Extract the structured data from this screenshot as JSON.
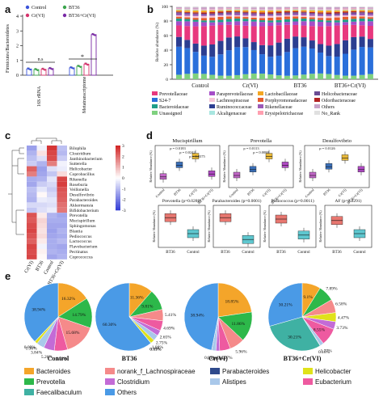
{
  "panel_letters": [
    "a",
    "b",
    "c",
    "d",
    "e"
  ],
  "panel_a": {
    "ylabel": "Firmicutes/Bacteroidetes",
    "yticks": [
      "0",
      "1",
      "2",
      "3",
      "4"
    ],
    "legend": [
      {
        "label": "Control",
        "color": "#3b54d9"
      },
      {
        "label": "BT36",
        "color": "#3aa44c"
      },
      {
        "label": "Cr(VI)",
        "color": "#d6336c"
      },
      {
        "label": "BT36+Cr(VI)",
        "color": "#7a2aa6"
      }
    ],
    "groups": [
      "16S rRNA",
      "Metatranscriptome"
    ],
    "ns_label": "n.s",
    "star_label": "*"
  },
  "panel_b": {
    "ylabel": "Relative abundance (%)",
    "yticks": [
      "0",
      "20",
      "40",
      "60",
      "80",
      "100"
    ],
    "groups": [
      "Control",
      "Cr(VI)",
      "BT36",
      "BT36+Cr(VI)"
    ],
    "legend": [
      {
        "label": "Prevotellaceae",
        "color": "#e8387e"
      },
      {
        "label": "Paraprevotellaceae",
        "color": "#a64dc8"
      },
      {
        "label": "Lactobacillaceae",
        "color": "#f4a623"
      },
      {
        "label": "Helicobacteraceae",
        "color": "#6a4c93"
      },
      {
        "label": "S24-7",
        "color": "#2a6fdb"
      },
      {
        "label": "Lachnospiraceae",
        "color": "#f6c6d8"
      },
      {
        "label": "Porphyromonadaceae",
        "color": "#e65c2e"
      },
      {
        "label": "Odoribacteraceae",
        "color": "#b22222"
      },
      {
        "label": "Bacteroidaceae",
        "color": "#1f9e89"
      },
      {
        "label": "Ruminococcaceae",
        "color": "#2c3e91"
      },
      {
        "label": "Rikenellaceae",
        "color": "#9b59b6"
      },
      {
        "label": "Others",
        "color": "#c8a2c8"
      },
      {
        "label": "Unassigned",
        "color": "#7fd17f"
      },
      {
        "label": "Alcaligenaceae",
        "color": "#a8e6e0"
      },
      {
        "label": "Erysipelotrichaceae",
        "color": "#ff9fb0"
      },
      {
        "label": "No_Rank",
        "color": "#e0e0e0"
      }
    ]
  },
  "panel_c": {
    "columns": [
      "Cr(VI)",
      "BT36",
      "Control",
      "BT36+Cr(VI)"
    ],
    "rows": [
      "Bilophila",
      "Clostridium",
      "Janthinobacterium",
      "Sutterella",
      "Helicobacter",
      "Coprobacillus",
      "Rikenella",
      "Roseburia",
      "Veillonella",
      "Desulfovibrio",
      "Parabacteroides",
      "Akkermansia",
      "Bifidobacterium",
      "Prevotella",
      "Mucispirillum",
      "Sphingomonas",
      "Blautia",
      "Pediococcus",
      "Lactococcus",
      "Flavobacterium",
      "Pectinatus",
      "Coprococcus"
    ],
    "scale_ticks": [
      "3",
      "2",
      "1",
      "0",
      "-1",
      "-2",
      "-3"
    ]
  },
  "panel_d": {
    "top_titles": [
      "Mucispirillum",
      "Prevotella",
      "Desulfovibrio"
    ],
    "top_pvals": [
      [
        "p = 0.0183",
        "p = 0.0242",
        "p = 0.0375"
      ],
      [
        "p = 0.0113",
        "p = 0.0088"
      ],
      [
        "p = 0.0126"
      ]
    ],
    "top_groups": [
      "Control",
      "BT36",
      "Cr(VI)",
      "BT36+Cr(VI)"
    ],
    "bottom_titles": [
      "Prevotella (p=0.0288)",
      "Parabacteroides (p=0.0001)",
      "Pediococcus (p=0.0011)",
      "AF (p=0.0291)"
    ],
    "bottom_groups": [
      "BT36",
      "Control"
    ],
    "ylabel": "Relative Abundance (%)"
  },
  "panel_e": {
    "pies": [
      {
        "label": "Control",
        "slices": [
          {
            "name": "Bacteroides",
            "value": 16.32,
            "text": "16.32%"
          },
          {
            "name": "Prevotella",
            "value": 14.79,
            "text": "14.79%"
          },
          {
            "name": "norank_f_Lachnospiraceae",
            "value": 15.68,
            "text": "15.68%"
          },
          {
            "name": "Eubacterium",
            "value": 6.52,
            "text": "6.52%"
          },
          {
            "name": "Clostridium",
            "value": 5.26,
            "text": "5.26%"
          },
          {
            "name": "Alistipes",
            "value": 3.84,
            "text": "3.84%"
          },
          {
            "name": "Helicobacter",
            "value": 1.36,
            "text": "1.36%"
          },
          {
            "name": "Parabacteroides",
            "value": 0.09,
            "text": "0.09%"
          },
          {
            "name": "Faecalibaculum",
            "value": 0.0,
            "text": ""
          },
          {
            "name": "Others",
            "value": 38.94,
            "text": "38.94%"
          }
        ]
      },
      {
        "label": "BT36",
        "slices": [
          {
            "name": "Bacteroides",
            "value": 11.36,
            "text": "11.36%"
          },
          {
            "name": "Prevotella",
            "value": 9.81,
            "text": "9.81%"
          },
          {
            "name": "norank_f_Lachnospiraceae",
            "value": 5.41,
            "text": "5.41%"
          },
          {
            "name": "Eubacterium",
            "value": 4.69,
            "text": "4.69%"
          },
          {
            "name": "Clostridium",
            "value": 2.65,
            "text": "2.65%"
          },
          {
            "name": "Alistipes",
            "value": 2.75,
            "text": "2.75%"
          },
          {
            "name": "Helicobacter",
            "value": 1.88,
            "text": "1.88%"
          },
          {
            "name": "Parabacteroides",
            "value": 0.09,
            "text": "0.09%"
          },
          {
            "name": "Faecalibaculum",
            "value": 0.01,
            "text": "0.01%"
          },
          {
            "name": "Others",
            "value": 60.3,
            "text": "60.30%"
          }
        ]
      },
      {
        "label": "Cr(VI)",
        "slices": [
          {
            "name": "Bacteroides",
            "value": 18.85,
            "text": "18.85%"
          },
          {
            "name": "Prevotella",
            "value": 11.86,
            "text": "11.86%"
          },
          {
            "name": "norank_f_Lachnospiraceae",
            "value": 5.96,
            "text": "5.96%"
          },
          {
            "name": "Eubacterium",
            "value": 4.27,
            "text": "4.27%"
          },
          {
            "name": "Clostridium",
            "value": 1.48,
            "text": "1.48%"
          },
          {
            "name": "Alistipes",
            "value": 1.71,
            "text": "1.71%"
          },
          {
            "name": "Helicobacter",
            "value": 0.01,
            "text": "0.01%"
          },
          {
            "name": "Parabacteroides",
            "value": 0.0,
            "text": ""
          },
          {
            "name": "Faecalibaculum",
            "value": 0.0,
            "text": ""
          },
          {
            "name": "Others",
            "value": 38.94,
            "text": "38.94%"
          }
        ]
      },
      {
        "label": "BT36+Cr(VI)",
        "slices": [
          {
            "name": "Bacteroides",
            "value": 9.1,
            "text": "9.1%"
          },
          {
            "name": "Prevotella",
            "value": 7.89,
            "text": "7.89%"
          },
          {
            "name": "norank_f_Lachnospiraceae",
            "value": 6.58,
            "text": "6.58%"
          },
          {
            "name": "Helicobacter",
            "value": 4.47,
            "text": "4.47%"
          },
          {
            "name": "Clostridium",
            "value": 3.73,
            "text": "3.73%"
          },
          {
            "name": "Eubacterium",
            "value": 8.55,
            "text": "8.55%"
          },
          {
            "name": "Alistipes",
            "value": 1.77,
            "text": "1.77%"
          },
          {
            "name": "Parabacteroides",
            "value": 0.18,
            "text": "0.18%"
          },
          {
            "name": "Faecalibaculum",
            "value": 30.21,
            "text": "30.21%"
          },
          {
            "name": "Others",
            "value": 30.21,
            "text": "30.21%"
          }
        ]
      }
    ],
    "legend": [
      {
        "name": "Bacteroides",
        "color": "#f4a52a"
      },
      {
        "name": "norank_f_Lachnospiraceae",
        "color": "#f58a8a"
      },
      {
        "name": "Parabacteroides",
        "color": "#2e4a8c"
      },
      {
        "name": "Helicobacter",
        "color": "#e0e21a"
      },
      {
        "name": "Prevotella",
        "color": "#2db84a"
      },
      {
        "name": "Clostridium",
        "color": "#c36bd6"
      },
      {
        "name": "Alistipes",
        "color": "#a9c8ea"
      },
      {
        "name": "Eubacterium",
        "color": "#ee5aa0"
      },
      {
        "name": "Faecalibaculum",
        "color": "#3fb1a3"
      },
      {
        "name": "Others",
        "color": "#4a9ae6"
      }
    ]
  }
}
